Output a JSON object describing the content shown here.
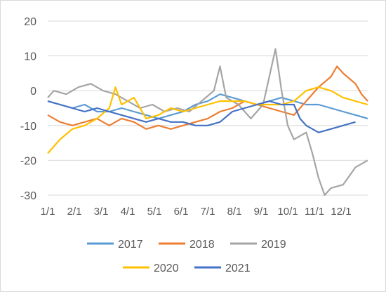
{
  "chart_data": {
    "type": "line",
    "title": "",
    "xlabel": "",
    "ylabel": "",
    "ylim": [
      -30,
      20
    ],
    "yticks": [
      20,
      10,
      0,
      -10,
      -20,
      -30
    ],
    "x_tick_labels": [
      "1/1",
      "2/1",
      "3/1",
      "4/1",
      "5/1",
      "6/1",
      "7/1",
      "8/1",
      "9/1",
      "10/1",
      "11/1",
      "12/1"
    ],
    "x_range_weeks": [
      0,
      52
    ],
    "grid": "horizontal",
    "legend": "bottom",
    "series": [
      {
        "name": "2017",
        "color": "#5b9bd5",
        "points": [
          [
            0,
            -3
          ],
          [
            2,
            -4
          ],
          [
            4,
            -5
          ],
          [
            6,
            -4
          ],
          [
            8,
            -6
          ],
          [
            10,
            -6
          ],
          [
            12,
            -5
          ],
          [
            14,
            -6
          ],
          [
            16,
            -7
          ],
          [
            18,
            -8
          ],
          [
            20,
            -7
          ],
          [
            22,
            -6
          ],
          [
            24,
            -4
          ],
          [
            26,
            -3
          ],
          [
            28,
            -1
          ],
          [
            30,
            -2
          ],
          [
            32,
            -3
          ],
          [
            34,
            -4
          ],
          [
            36,
            -3
          ],
          [
            38,
            -2
          ],
          [
            40,
            -3
          ],
          [
            42,
            -4
          ],
          [
            44,
            -4
          ],
          [
            46,
            -5
          ],
          [
            48,
            -6
          ],
          [
            50,
            -7
          ],
          [
            52,
            -8
          ]
        ]
      },
      {
        "name": "2018",
        "color": "#ed7d31",
        "points": [
          [
            0,
            -7
          ],
          [
            2,
            -9
          ],
          [
            4,
            -10
          ],
          [
            6,
            -9
          ],
          [
            8,
            -8
          ],
          [
            10,
            -10
          ],
          [
            12,
            -8
          ],
          [
            14,
            -9
          ],
          [
            16,
            -11
          ],
          [
            18,
            -10
          ],
          [
            20,
            -11
          ],
          [
            22,
            -10
          ],
          [
            24,
            -9
          ],
          [
            26,
            -8
          ],
          [
            28,
            -6
          ],
          [
            30,
            -5
          ],
          [
            32,
            -3
          ],
          [
            34,
            -4
          ],
          [
            36,
            -5
          ],
          [
            38,
            -6
          ],
          [
            40,
            -7
          ],
          [
            42,
            -3
          ],
          [
            44,
            1
          ],
          [
            46,
            4
          ],
          [
            47,
            7
          ],
          [
            48,
            5
          ],
          [
            50,
            2
          ],
          [
            51,
            -1
          ],
          [
            52,
            -3
          ]
        ]
      },
      {
        "name": "2019",
        "color": "#a5a5a5",
        "points": [
          [
            0,
            -2
          ],
          [
            1,
            0
          ],
          [
            3,
            -1
          ],
          [
            5,
            1
          ],
          [
            7,
            2
          ],
          [
            9,
            0
          ],
          [
            11,
            -1
          ],
          [
            13,
            -3
          ],
          [
            15,
            -5
          ],
          [
            17,
            -4
          ],
          [
            19,
            -6
          ],
          [
            21,
            -5
          ],
          [
            23,
            -6
          ],
          [
            25,
            -3
          ],
          [
            27,
            0
          ],
          [
            28,
            7
          ],
          [
            29,
            -2
          ],
          [
            31,
            -4
          ],
          [
            33,
            -8
          ],
          [
            35,
            -4
          ],
          [
            36,
            4
          ],
          [
            37,
            12
          ],
          [
            38,
            0
          ],
          [
            39,
            -10
          ],
          [
            40,
            -14
          ],
          [
            41,
            -13
          ],
          [
            42,
            -12
          ],
          [
            43,
            -18
          ],
          [
            44,
            -25
          ],
          [
            45,
            -30
          ],
          [
            46,
            -28
          ],
          [
            48,
            -27
          ],
          [
            50,
            -22
          ],
          [
            52,
            -20
          ]
        ]
      },
      {
        "name": "2020",
        "color": "#ffc000",
        "points": [
          [
            0,
            -18
          ],
          [
            2,
            -14
          ],
          [
            4,
            -11
          ],
          [
            6,
            -10
          ],
          [
            8,
            -8
          ],
          [
            10,
            -5
          ],
          [
            11,
            1
          ],
          [
            12,
            -4
          ],
          [
            14,
            -2
          ],
          [
            16,
            -8
          ],
          [
            18,
            -7
          ],
          [
            20,
            -5
          ],
          [
            22,
            -6
          ],
          [
            24,
            -5
          ],
          [
            26,
            -4
          ],
          [
            28,
            -3
          ],
          [
            30,
            -3
          ],
          [
            32,
            -3
          ],
          [
            34,
            -4
          ],
          [
            36,
            -4
          ],
          [
            38,
            -4
          ],
          [
            40,
            -3
          ],
          [
            42,
            0
          ],
          [
            44,
            1
          ],
          [
            46,
            0
          ],
          [
            48,
            -2
          ],
          [
            50,
            -3
          ],
          [
            52,
            -4
          ]
        ]
      },
      {
        "name": "2021",
        "color": "#4472c4",
        "points": [
          [
            0,
            -3
          ],
          [
            2,
            -4
          ],
          [
            4,
            -5
          ],
          [
            6,
            -6
          ],
          [
            8,
            -5
          ],
          [
            10,
            -6
          ],
          [
            12,
            -7
          ],
          [
            14,
            -8
          ],
          [
            16,
            -9
          ],
          [
            18,
            -8
          ],
          [
            20,
            -9
          ],
          [
            22,
            -9
          ],
          [
            24,
            -10
          ],
          [
            26,
            -10
          ],
          [
            28,
            -9
          ],
          [
            30,
            -6
          ],
          [
            32,
            -5
          ],
          [
            34,
            -4
          ],
          [
            36,
            -3
          ],
          [
            38,
            -4
          ],
          [
            40,
            -4
          ],
          [
            41,
            -8
          ],
          [
            42,
            -10
          ],
          [
            44,
            -12
          ],
          [
            46,
            -11
          ],
          [
            48,
            -10
          ],
          [
            50,
            -9
          ]
        ]
      }
    ]
  }
}
